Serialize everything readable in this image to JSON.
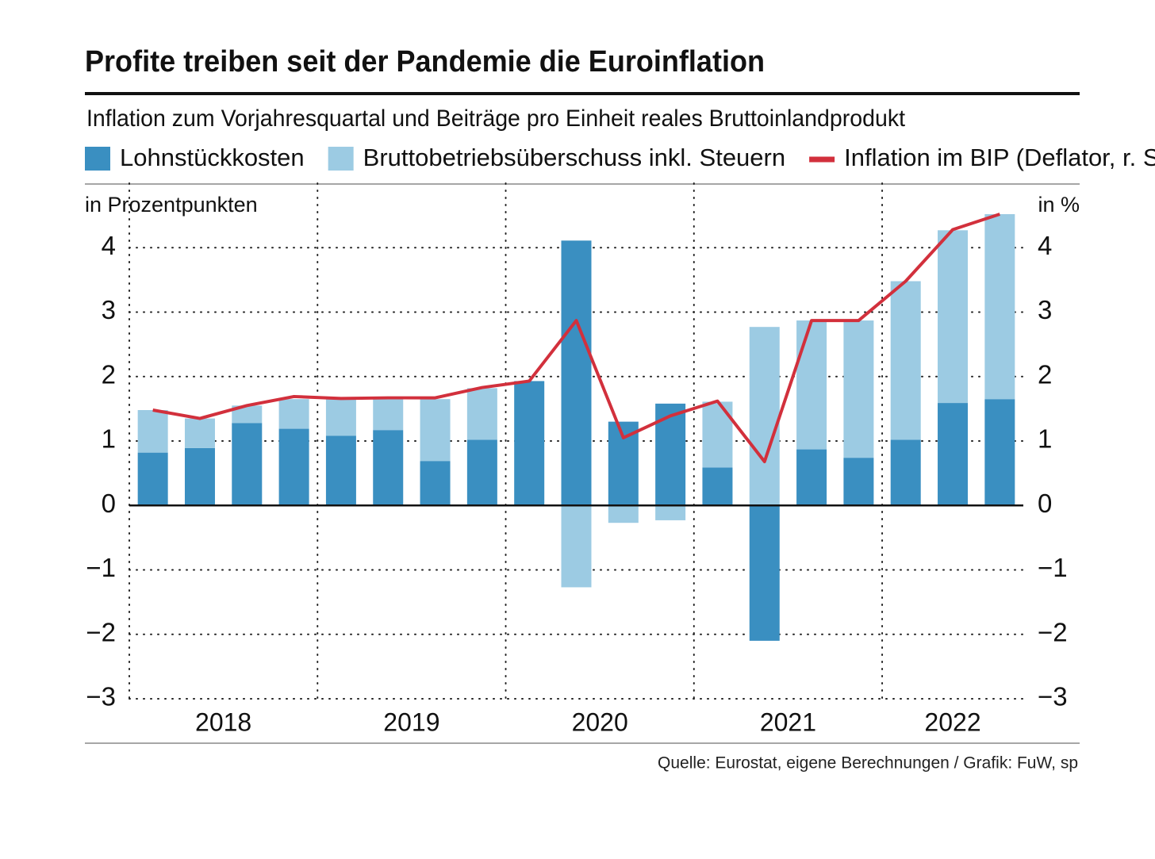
{
  "chart_data": {
    "type": "bar",
    "stacked": true,
    "title": "Profite treiben seit der Pandemie die Euroinflation",
    "subtitle": "Inflation zum Vorjahresquartal und Beiträge pro Einheit reales Bruttoinlandprodukt",
    "y_label": "in Prozentpunkten",
    "y2_label": "in %",
    "source": "Quelle: Eurostat, eigene Berechnungen / Grafik: FuW, sp",
    "categories": [
      null,
      null,
      null,
      null,
      null,
      null,
      null,
      null,
      null,
      null,
      null,
      null,
      null,
      null,
      null,
      null,
      null,
      null,
      null
    ],
    "x_groups": [
      "2018",
      "2019",
      "2020",
      "2021",
      "2022"
    ],
    "series": [
      {
        "name": "Lohnstückkosten",
        "type": "bar",
        "color": "#3a8fc1",
        "values": [
          0.82,
          0.89,
          1.28,
          1.19,
          1.08,
          1.17,
          0.69,
          1.02,
          1.93,
          4.11,
          1.3,
          1.58,
          0.59,
          -2.1,
          0.87,
          0.74,
          1.02,
          1.59,
          1.65
        ]
      },
      {
        "name": "Bruttobetriebsüberschuss inkl. Steuern",
        "type": "bar",
        "color": "#9ccbe3",
        "values": [
          0.66,
          0.46,
          0.27,
          0.46,
          0.57,
          0.48,
          0.96,
          0.8,
          0,
          -1.27,
          -0.27,
          -0.23,
          1.02,
          2.77,
          2.0,
          2.13,
          2.46,
          2.68,
          2.87
        ]
      },
      {
        "name": "Inflation im BIP (Deflator, r. S.)",
        "type": "line",
        "axis": "y2",
        "color": "#d2303c",
        "values": [
          1.48,
          1.35,
          1.55,
          1.69,
          1.66,
          1.67,
          1.67,
          1.83,
          1.93,
          2.87,
          1.05,
          1.39,
          1.62,
          0.68,
          2.87,
          2.87,
          3.48,
          4.28,
          4.52
        ]
      }
    ],
    "ylim": [
      -3,
      5
    ],
    "yticks": [
      {
        "value": -3,
        "label": "−3"
      },
      {
        "value": -2,
        "label": "−2"
      },
      {
        "value": -1,
        "label": "−1"
      },
      0,
      1,
      2,
      3,
      4
    ],
    "y2lim": [
      -3,
      5
    ],
    "y2ticks": [
      {
        "value": -3,
        "label": "−3"
      },
      {
        "value": -2,
        "label": "−2"
      },
      {
        "value": -1,
        "label": "−1"
      },
      0,
      1,
      2,
      3,
      4
    ],
    "grid": true
  }
}
